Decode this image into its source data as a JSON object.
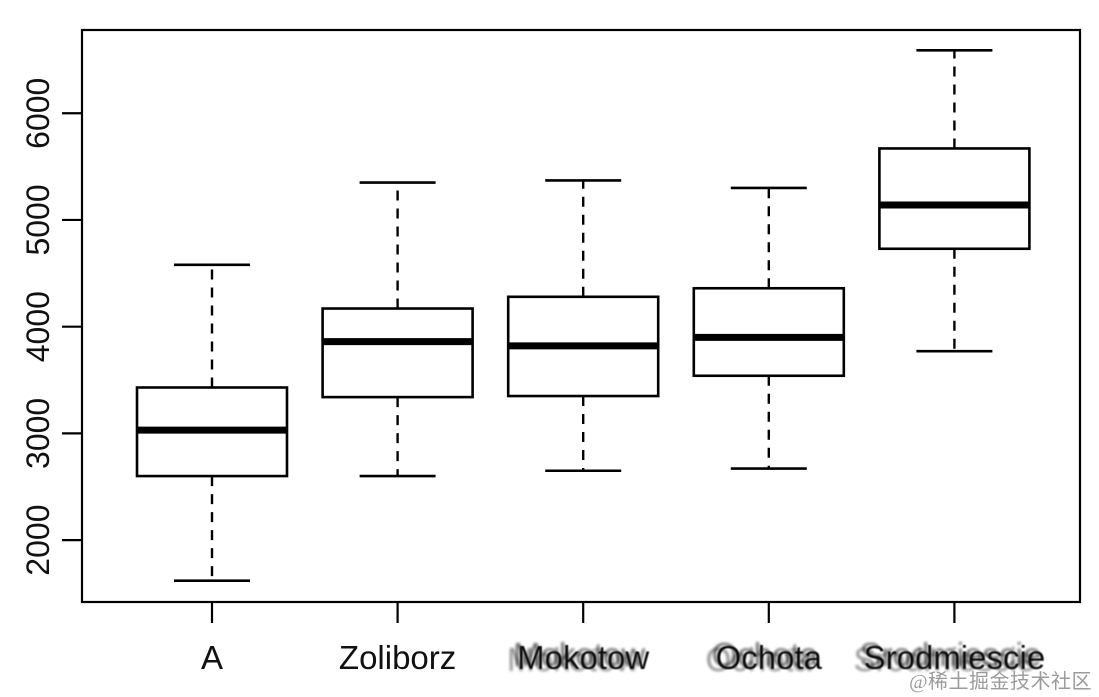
{
  "watermark": {
    "text": "@稀土掘金技术社区",
    "color": "#9b9b9b"
  },
  "chart_data": {
    "type": "boxplot",
    "title": "",
    "xlabel": "",
    "ylabel": "",
    "grid": false,
    "legend": false,
    "background": "#ffffff",
    "line_color": "#000000",
    "categories": [
      "A",
      "Zoliborz",
      "Mokotow",
      "Ochota",
      "Srodmiescie"
    ],
    "blurred_labels": [
      false,
      false,
      true,
      true,
      true
    ],
    "series": [
      {
        "name": "A",
        "low": 1620,
        "q1": 2600,
        "median": 3030,
        "q3": 3430,
        "high": 4580
      },
      {
        "name": "Zoliborz",
        "low": 2600,
        "q1": 3340,
        "median": 3860,
        "q3": 4170,
        "high": 5350
      },
      {
        "name": "Mokotow",
        "low": 2650,
        "q1": 3350,
        "median": 3820,
        "q3": 4280,
        "high": 5370
      },
      {
        "name": "Ochota",
        "low": 2670,
        "q1": 3540,
        "median": 3900,
        "q3": 4360,
        "high": 5300
      },
      {
        "name": "Srodmiescie",
        "low": 3770,
        "q1": 4730,
        "median": 5140,
        "q3": 5670,
        "high": 6590
      }
    ],
    "yticks": [
      2000,
      3000,
      4000,
      5000,
      6000
    ],
    "ylim": [
      1420,
      6780
    ]
  }
}
